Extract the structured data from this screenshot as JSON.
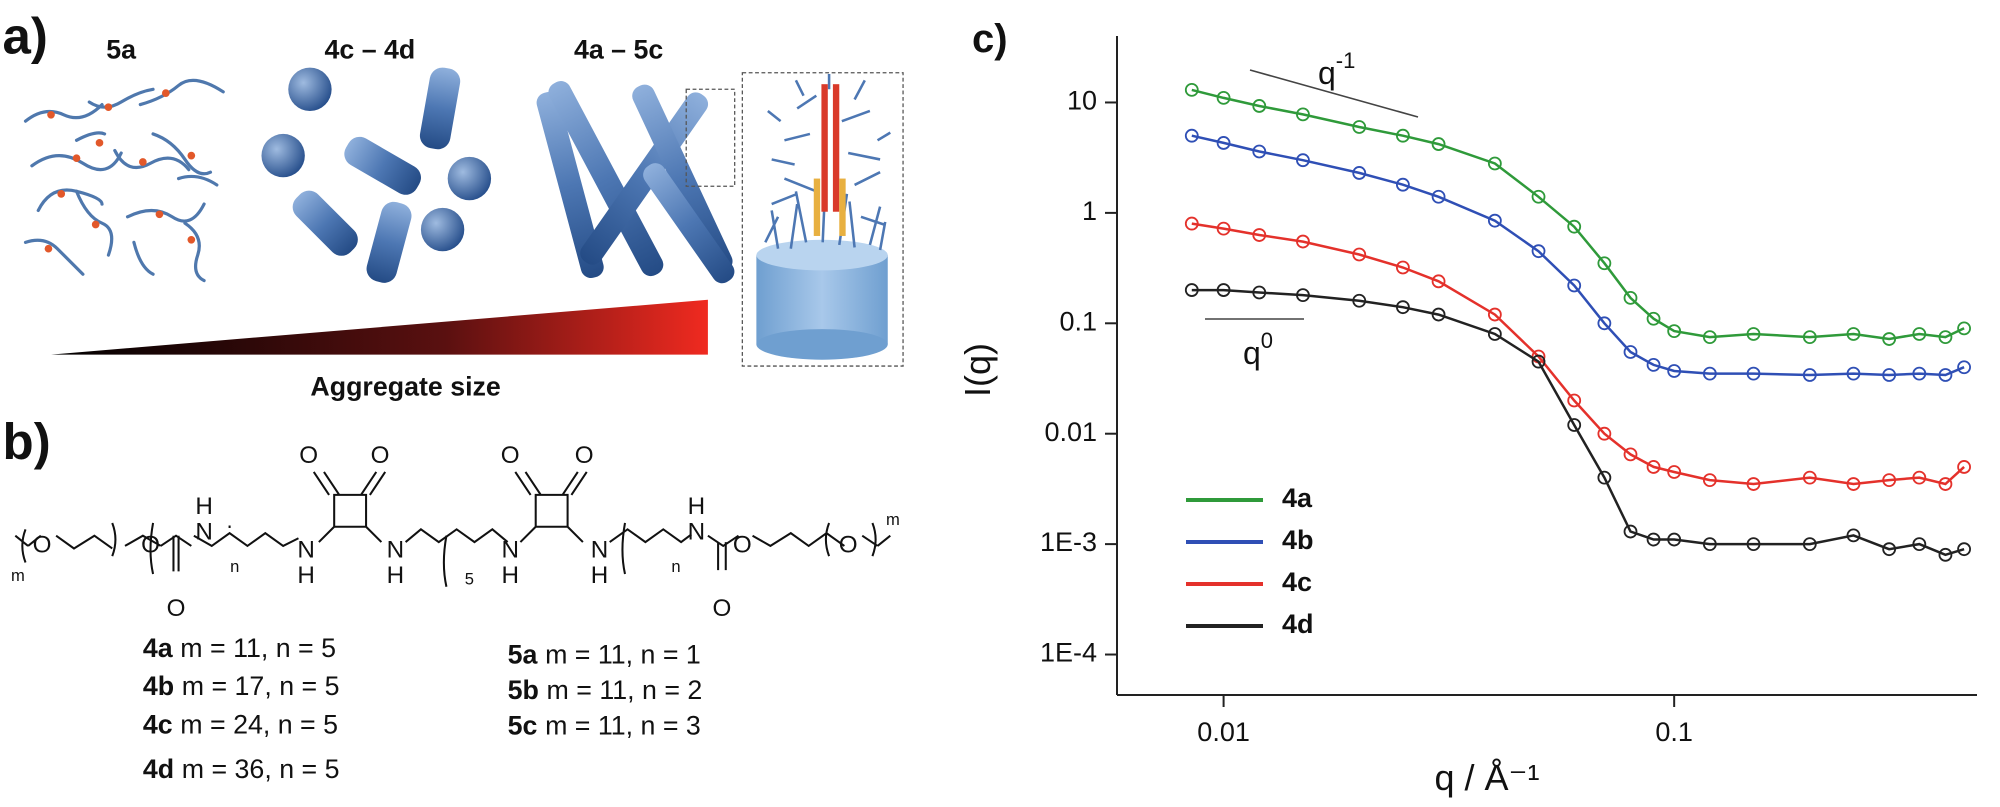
{
  "panel_a": {
    "label": "a)",
    "titles": [
      "5a",
      "4c – 4d",
      "4a – 5c"
    ],
    "axis_caption": "Aggregate size"
  },
  "panel_b": {
    "label": "b)",
    "structure": [
      "m",
      "O",
      "O",
      "O",
      "H",
      "N",
      "n",
      "N",
      "H",
      "O",
      "O",
      "N",
      "H",
      "5",
      "N",
      "H",
      "O",
      "O",
      "N",
      "H",
      "n",
      "H",
      "N",
      "O",
      "O",
      "O",
      "m"
    ],
    "compositions": [
      {
        "compound": "4a",
        "params": "m = 11, n = 5"
      },
      {
        "compound": "4b",
        "params": "m = 17, n = 5"
      },
      {
        "compound": "4c",
        "params": "m = 24, n = 5"
      },
      {
        "compound": "4d",
        "params": "m = 36, n = 5"
      },
      {
        "compound": "5a",
        "params": "m = 11, n = 1"
      },
      {
        "compound": "5b",
        "params": "m = 11, n = 2"
      },
      {
        "compound": "5c",
        "params": "m = 11, n = 3"
      }
    ]
  },
  "chart_data": {
    "type": "line",
    "panel_label": "c)",
    "x_label": "q / Å⁻¹",
    "y_label": "I(q)",
    "log_x": true,
    "log_y": true,
    "markers": true,
    "legend": "lower-left",
    "annotations": [
      {
        "text": "q",
        "sup": "-1"
      },
      {
        "text": "q",
        "sup": "0"
      }
    ],
    "x": [
      0.0085,
      0.01,
      0.012,
      0.015,
      0.02,
      0.025,
      0.03,
      0.04,
      0.05,
      0.06,
      0.07,
      0.08,
      0.09,
      0.1,
      0.12,
      0.15,
      0.2,
      0.25,
      0.3,
      0.35,
      0.4,
      0.44
    ],
    "series": [
      {
        "name": "4a",
        "color": "#2f9a3a",
        "values": [
          13,
          11,
          9.3,
          7.8,
          6,
          5,
          4.2,
          2.8,
          1.4,
          0.75,
          0.35,
          0.17,
          0.11,
          0.085,
          0.075,
          0.08,
          0.075,
          0.08,
          0.072,
          0.08,
          0.075,
          0.09
        ]
      },
      {
        "name": "4b",
        "color": "#2f4fb5",
        "values": [
          5,
          4.3,
          3.6,
          3,
          2.3,
          1.8,
          1.4,
          0.85,
          0.45,
          0.22,
          0.1,
          0.055,
          0.042,
          0.037,
          0.035,
          0.035,
          0.034,
          0.035,
          0.034,
          0.035,
          0.034,
          0.04
        ]
      },
      {
        "name": "4c",
        "color": "#e4312b",
        "values": [
          0.8,
          0.72,
          0.63,
          0.55,
          0.42,
          0.32,
          0.24,
          0.12,
          0.05,
          0.02,
          0.01,
          0.0065,
          0.005,
          0.0045,
          0.0038,
          0.0035,
          0.004,
          0.0035,
          0.0038,
          0.004,
          0.0035,
          0.005
        ]
      },
      {
        "name": "4d",
        "color": "#222222",
        "values": [
          0.2,
          0.2,
          0.19,
          0.18,
          0.16,
          0.14,
          0.12,
          0.08,
          0.045,
          0.012,
          0.004,
          0.0013,
          0.0011,
          0.0011,
          0.001,
          0.001,
          0.001,
          0.0012,
          0.0009,
          0.001,
          0.0008,
          0.0009
        ]
      }
    ],
    "xlim": [
      0.0058,
      0.47
    ],
    "ylim": [
      4.3e-05,
      40
    ],
    "xticks": [
      0.01,
      0.1
    ],
    "yticks": [
      {
        "value": 0.0001,
        "label": "1E-4"
      },
      {
        "value": 0.001,
        "label": "1E-3"
      },
      0.01,
      0.1,
      1,
      10
    ]
  }
}
